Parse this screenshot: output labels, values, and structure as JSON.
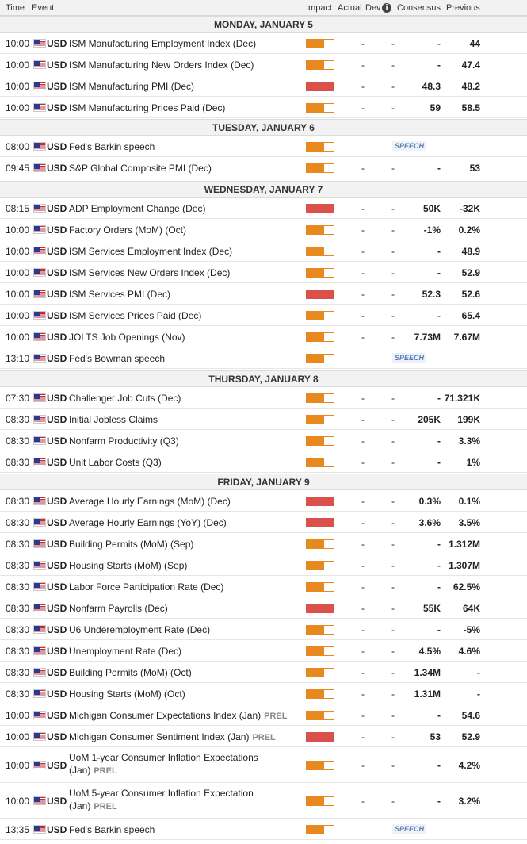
{
  "header": {
    "time": "Time",
    "event": "Event",
    "impact": "Impact",
    "actual": "Actual",
    "dev": "Dev",
    "consensus": "Consensus",
    "previous": "Previous"
  },
  "speech_label": "SPEECH",
  "colors": {
    "medium_impact": "#e8891f",
    "high_impact": "#d9514a",
    "day_bg": "#f2f2f2"
  },
  "days": [
    {
      "label": "MONDAY, JANUARY 5",
      "events": [
        {
          "time": "10:00",
          "currency": "USD",
          "name": "ISM Manufacturing Employment Index (Dec)",
          "tag": "",
          "impact": "medium",
          "actual": "-",
          "dev": "-",
          "consensus": "-",
          "previous": "44",
          "speech": false
        },
        {
          "time": "10:00",
          "currency": "USD",
          "name": "ISM Manufacturing New Orders Index (Dec)",
          "tag": "",
          "impact": "medium",
          "actual": "-",
          "dev": "-",
          "consensus": "-",
          "previous": "47.4",
          "speech": false
        },
        {
          "time": "10:00",
          "currency": "USD",
          "name": "ISM Manufacturing PMI (Dec)",
          "tag": "",
          "impact": "high",
          "actual": "-",
          "dev": "-",
          "consensus": "48.3",
          "previous": "48.2",
          "speech": false
        },
        {
          "time": "10:00",
          "currency": "USD",
          "name": "ISM Manufacturing Prices Paid (Dec)",
          "tag": "",
          "impact": "medium",
          "actual": "-",
          "dev": "-",
          "consensus": "59",
          "previous": "58.5",
          "speech": false
        }
      ]
    },
    {
      "label": "TUESDAY, JANUARY 6",
      "events": [
        {
          "time": "08:00",
          "currency": "USD",
          "name": "Fed's Barkin speech",
          "tag": "",
          "impact": "medium",
          "actual": "",
          "dev": "",
          "consensus": "",
          "previous": "",
          "speech": true
        },
        {
          "time": "09:45",
          "currency": "USD",
          "name": "S&P Global Composite PMI (Dec)",
          "tag": "",
          "impact": "medium",
          "actual": "-",
          "dev": "-",
          "consensus": "-",
          "previous": "53",
          "speech": false
        }
      ]
    },
    {
      "label": "WEDNESDAY, JANUARY 7",
      "events": [
        {
          "time": "08:15",
          "currency": "USD",
          "name": "ADP Employment Change (Dec)",
          "tag": "",
          "impact": "high",
          "actual": "-",
          "dev": "-",
          "consensus": "50K",
          "previous": "-32K",
          "speech": false
        },
        {
          "time": "10:00",
          "currency": "USD",
          "name": "Factory Orders (MoM) (Oct)",
          "tag": "",
          "impact": "medium",
          "actual": "-",
          "dev": "-",
          "consensus": "-1%",
          "previous": "0.2%",
          "speech": false
        },
        {
          "time": "10:00",
          "currency": "USD",
          "name": "ISM Services Employment Index (Dec)",
          "tag": "",
          "impact": "medium",
          "actual": "-",
          "dev": "-",
          "consensus": "-",
          "previous": "48.9",
          "speech": false
        },
        {
          "time": "10:00",
          "currency": "USD",
          "name": "ISM Services New Orders Index (Dec)",
          "tag": "",
          "impact": "medium",
          "actual": "-",
          "dev": "-",
          "consensus": "-",
          "previous": "52.9",
          "speech": false
        },
        {
          "time": "10:00",
          "currency": "USD",
          "name": "ISM Services PMI (Dec)",
          "tag": "",
          "impact": "high",
          "actual": "-",
          "dev": "-",
          "consensus": "52.3",
          "previous": "52.6",
          "speech": false
        },
        {
          "time": "10:00",
          "currency": "USD",
          "name": "ISM Services Prices Paid (Dec)",
          "tag": "",
          "impact": "medium",
          "actual": "-",
          "dev": "-",
          "consensus": "-",
          "previous": "65.4",
          "speech": false
        },
        {
          "time": "10:00",
          "currency": "USD",
          "name": "JOLTS Job Openings (Nov)",
          "tag": "",
          "impact": "medium",
          "actual": "-",
          "dev": "-",
          "consensus": "7.73M",
          "previous": "7.67M",
          "speech": false
        },
        {
          "time": "13:10",
          "currency": "USD",
          "name": "Fed's Bowman speech",
          "tag": "",
          "impact": "medium",
          "actual": "",
          "dev": "",
          "consensus": "",
          "previous": "",
          "speech": true
        }
      ]
    },
    {
      "label": "THURSDAY, JANUARY 8",
      "events": [
        {
          "time": "07:30",
          "currency": "USD",
          "name": "Challenger Job Cuts (Dec)",
          "tag": "",
          "impact": "medium",
          "actual": "-",
          "dev": "-",
          "consensus": "-",
          "previous": "71.321K",
          "speech": false
        },
        {
          "time": "08:30",
          "currency": "USD",
          "name": "Initial Jobless Claims",
          "tag": "",
          "impact": "medium",
          "actual": "-",
          "dev": "-",
          "consensus": "205K",
          "previous": "199K",
          "speech": false
        },
        {
          "time": "08:30",
          "currency": "USD",
          "name": "Nonfarm Productivity (Q3)",
          "tag": "",
          "impact": "medium",
          "actual": "-",
          "dev": "-",
          "consensus": "-",
          "previous": "3.3%",
          "speech": false
        },
        {
          "time": "08:30",
          "currency": "USD",
          "name": "Unit Labor Costs (Q3)",
          "tag": "",
          "impact": "medium",
          "actual": "-",
          "dev": "-",
          "consensus": "-",
          "previous": "1%",
          "speech": false
        }
      ]
    },
    {
      "label": "FRIDAY, JANUARY 9",
      "events": [
        {
          "time": "08:30",
          "currency": "USD",
          "name": "Average Hourly Earnings (MoM) (Dec)",
          "tag": "",
          "impact": "high",
          "actual": "-",
          "dev": "-",
          "consensus": "0.3%",
          "previous": "0.1%",
          "speech": false
        },
        {
          "time": "08:30",
          "currency": "USD",
          "name": "Average Hourly Earnings (YoY) (Dec)",
          "tag": "",
          "impact": "high",
          "actual": "-",
          "dev": "-",
          "consensus": "3.6%",
          "previous": "3.5%",
          "speech": false
        },
        {
          "time": "08:30",
          "currency": "USD",
          "name": "Building Permits (MoM) (Sep)",
          "tag": "",
          "impact": "medium",
          "actual": "-",
          "dev": "-",
          "consensus": "-",
          "previous": "1.312M",
          "speech": false
        },
        {
          "time": "08:30",
          "currency": "USD",
          "name": "Housing Starts (MoM) (Sep)",
          "tag": "",
          "impact": "medium",
          "actual": "-",
          "dev": "-",
          "consensus": "-",
          "previous": "1.307M",
          "speech": false
        },
        {
          "time": "08:30",
          "currency": "USD",
          "name": "Labor Force Participation Rate (Dec)",
          "tag": "",
          "impact": "medium",
          "actual": "-",
          "dev": "-",
          "consensus": "-",
          "previous": "62.5%",
          "speech": false
        },
        {
          "time": "08:30",
          "currency": "USD",
          "name": "Nonfarm Payrolls (Dec)",
          "tag": "",
          "impact": "high",
          "actual": "-",
          "dev": "-",
          "consensus": "55K",
          "previous": "64K",
          "speech": false
        },
        {
          "time": "08:30",
          "currency": "USD",
          "name": "U6 Underemployment Rate (Dec)",
          "tag": "",
          "impact": "medium",
          "actual": "-",
          "dev": "-",
          "consensus": "-",
          "previous": "-5%",
          "speech": false
        },
        {
          "time": "08:30",
          "currency": "USD",
          "name": "Unemployment Rate (Dec)",
          "tag": "",
          "impact": "medium",
          "actual": "-",
          "dev": "-",
          "consensus": "4.5%",
          "previous": "4.6%",
          "speech": false
        },
        {
          "time": "08:30",
          "currency": "USD",
          "name": "Building Permits (MoM) (Oct)",
          "tag": "",
          "impact": "medium",
          "actual": "-",
          "dev": "-",
          "consensus": "1.34M",
          "previous": "-",
          "speech": false
        },
        {
          "time": "08:30",
          "currency": "USD",
          "name": "Housing Starts (MoM) (Oct)",
          "tag": "",
          "impact": "medium",
          "actual": "-",
          "dev": "-",
          "consensus": "1.31M",
          "previous": "-",
          "speech": false
        },
        {
          "time": "10:00",
          "currency": "USD",
          "name": "Michigan Consumer Expectations Index (Jan)",
          "tag": "PREL",
          "impact": "medium",
          "actual": "-",
          "dev": "-",
          "consensus": "-",
          "previous": "54.6",
          "speech": false
        },
        {
          "time": "10:00",
          "currency": "USD",
          "name": "Michigan Consumer Sentiment Index (Jan)",
          "tag": "PREL",
          "impact": "high",
          "actual": "-",
          "dev": "-",
          "consensus": "53",
          "previous": "52.9",
          "speech": false
        },
        {
          "time": "10:00",
          "currency": "USD",
          "name": "UoM 1-year Consumer Inflation Expectations (Jan)",
          "tag": "PREL",
          "impact": "medium",
          "actual": "-",
          "dev": "-",
          "consensus": "-",
          "previous": "4.2%",
          "speech": false
        },
        {
          "time": "10:00",
          "currency": "USD",
          "name": "UoM 5-year Consumer Inflation Expectation (Jan)",
          "tag": "PREL",
          "impact": "medium",
          "actual": "-",
          "dev": "-",
          "consensus": "-",
          "previous": "3.2%",
          "speech": false
        },
        {
          "time": "13:35",
          "currency": "USD",
          "name": "Fed's Barkin speech",
          "tag": "",
          "impact": "medium",
          "actual": "",
          "dev": "",
          "consensus": "",
          "previous": "",
          "speech": true
        }
      ]
    }
  ]
}
